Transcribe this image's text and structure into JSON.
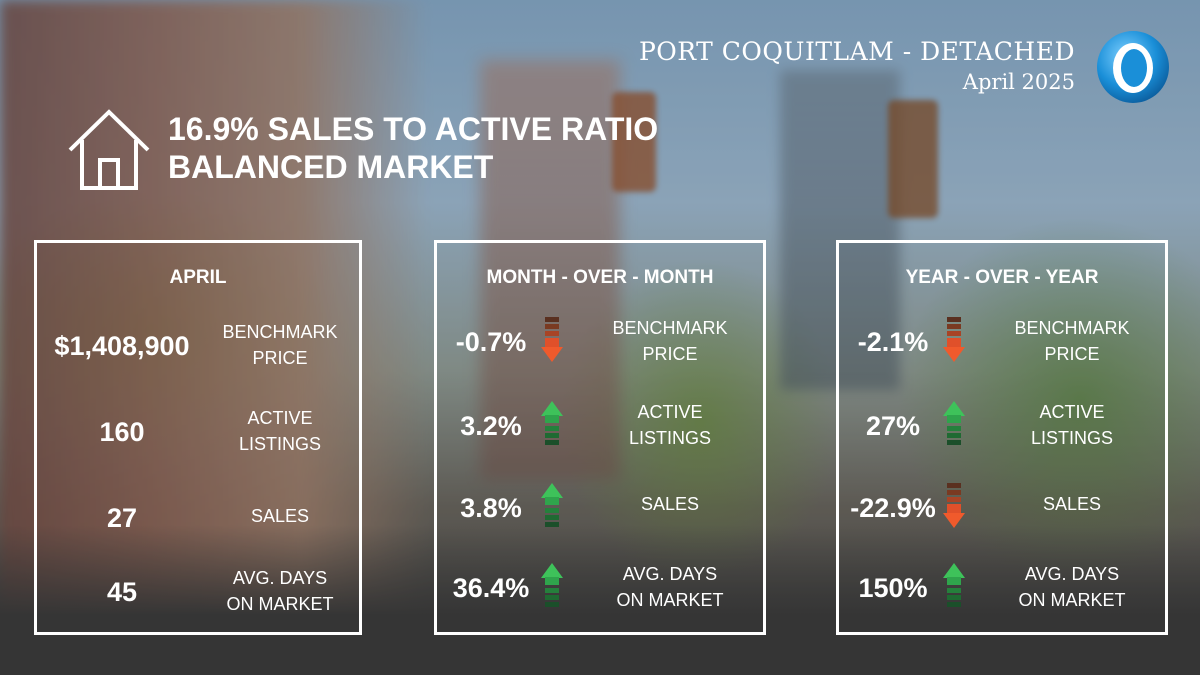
{
  "header": {
    "title": "PORT COQUITLAM - DETACHED",
    "date": "April 2025"
  },
  "summary": {
    "line1": "16.9% SALES TO ACTIVE RATIO",
    "line2": "BALANCED MARKET"
  },
  "panels": {
    "april": {
      "heading": "APRIL",
      "rows": [
        {
          "value": "$1,408,900",
          "label1": "BENCHMARK",
          "label2": "PRICE"
        },
        {
          "value": "160",
          "label1": "ACTIVE",
          "label2": "LISTINGS"
        },
        {
          "value": "27",
          "label1": "SALES",
          "label2": ""
        },
        {
          "value": "45",
          "label1": "AVG. DAYS",
          "label2": "ON MARKET"
        }
      ]
    },
    "mom": {
      "heading": "MONTH - OVER - MONTH",
      "rows": [
        {
          "value": "-0.7%",
          "direction": "down",
          "label1": "BENCHMARK",
          "label2": "PRICE"
        },
        {
          "value": "3.2%",
          "direction": "up",
          "label1": "ACTIVE",
          "label2": "LISTINGS"
        },
        {
          "value": "3.8%",
          "direction": "up",
          "label1": "SALES",
          "label2": ""
        },
        {
          "value": "36.4%",
          "direction": "up",
          "label1": "AVG. DAYS",
          "label2": "ON MARKET"
        }
      ]
    },
    "yoy": {
      "heading": "YEAR - OVER - YEAR",
      "rows": [
        {
          "value": "-2.1%",
          "direction": "down",
          "label1": "BENCHMARK",
          "label2": "PRICE"
        },
        {
          "value": "27%",
          "direction": "up",
          "label1": "ACTIVE",
          "label2": "LISTINGS"
        },
        {
          "value": "-22.9%",
          "direction": "down",
          "label1": "SALES",
          "label2": ""
        },
        {
          "value": "150%",
          "direction": "up",
          "label1": "AVG. DAYS",
          "label2": "ON MARKET"
        }
      ]
    }
  },
  "icons": {
    "house": "house-icon",
    "logo": "ring-logo",
    "up": "arrow-up-icon",
    "down": "arrow-down-icon"
  },
  "colors": {
    "up": "#3ec25a",
    "down": "#f05a2c",
    "logo": "#1a8fd8"
  }
}
